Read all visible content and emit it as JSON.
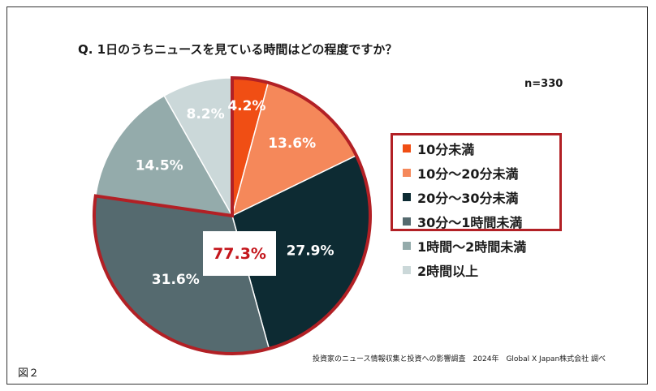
{
  "title": "Q. 1日のうちニュースを見ている時間はどの程度ですか？",
  "sample_size": "n=330",
  "highlight": {
    "value": "77.3%"
  },
  "source": "投資家のニュース情報収集と投資への影響調査　2024年　Global X Japan株式会社 調べ",
  "figure_label": "図２",
  "chart_data": {
    "type": "pie",
    "title": "Q. 1日のうちニュースを見ている時間はどの程度ですか？",
    "start": "12 o'clock",
    "direction": "clockwise",
    "slices": [
      {
        "label": "10分未満",
        "value": 4.2,
        "display": "4.2%",
        "color": "#f04e14",
        "text_color": "#ffffff"
      },
      {
        "label": "10分～20分未満",
        "value": 13.6,
        "display": "13.6%",
        "color": "#f5885a",
        "text_color": "#ffffff"
      },
      {
        "label": "20分～30分未満",
        "value": 27.9,
        "display": "27.9%",
        "color": "#0d2b33",
        "text_color": "#ffffff"
      },
      {
        "label": "30分～1時間未満",
        "value": 31.6,
        "display": "31.6%",
        "color": "#556a6f",
        "text_color": "#ffffff"
      },
      {
        "label": "1時間～2時間未満",
        "value": 14.5,
        "display": "14.5%",
        "color": "#94abab",
        "text_color": "#ffffff"
      },
      {
        "label": "2時間以上",
        "value": 8.2,
        "display": "8.2%",
        "color": "#cbd8d9",
        "text_color": "#ffffff"
      }
    ],
    "highlighted_slices": [
      "10分未満",
      "10分～20分未満",
      "20分～30分未満",
      "30分～1時間未満"
    ],
    "highlight_color": "#b22025"
  }
}
